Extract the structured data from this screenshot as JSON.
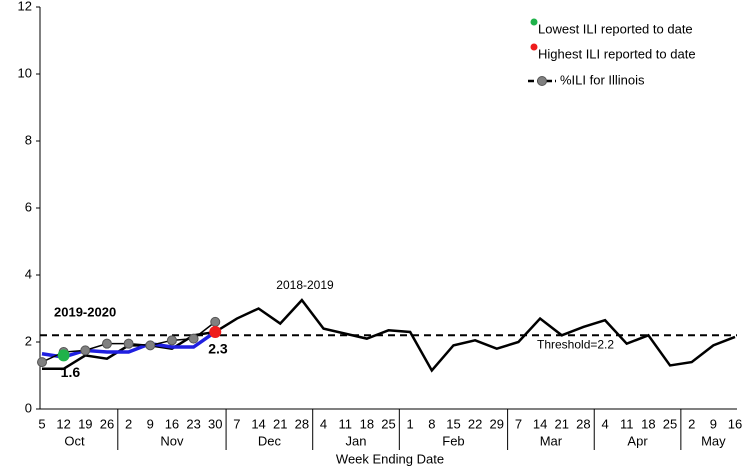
{
  "chart_data": {
    "type": "line",
    "xlabel": "Week Ending Date",
    "categories": [
      "5",
      "12",
      "19",
      "26",
      "2",
      "9",
      "16",
      "23",
      "30",
      "7",
      "14",
      "21",
      "28",
      "4",
      "11",
      "18",
      "25",
      "1",
      "8",
      "15",
      "22",
      "29",
      "7",
      "14",
      "21",
      "28",
      "4",
      "11",
      "18",
      "25",
      "2",
      "9",
      "16"
    ],
    "groups": [
      {
        "label": "Oct",
        "size": 4
      },
      {
        "label": "Nov",
        "size": 5
      },
      {
        "label": "Dec",
        "size": 4
      },
      {
        "label": "Jan",
        "size": 4
      },
      {
        "label": "Feb",
        "size": 5
      },
      {
        "label": "Mar",
        "size": 4
      },
      {
        "label": "Apr",
        "size": 4
      },
      {
        "label": "May",
        "size": 3
      }
    ],
    "ylim": [
      0,
      12
    ],
    "yticks": [
      0,
      2,
      4,
      6,
      8,
      10,
      12
    ],
    "threshold": 2.2,
    "threshold_label": "Threshold=2.2",
    "annotations": [
      "2018-2019",
      "2019-2020"
    ],
    "series": [
      {
        "color": "#000000",
        "style": "line",
        "values": [
          1.2,
          1.2,
          1.6,
          1.5,
          1.9,
          1.9,
          1.8,
          2.2,
          2.3,
          2.7,
          3.0,
          2.55,
          3.25,
          2.4,
          2.25,
          2.1,
          2.35,
          2.3,
          1.15,
          1.9,
          2.05,
          1.8,
          2.0,
          2.7,
          2.2,
          2.45,
          2.65,
          1.95,
          2.2,
          1.3,
          1.4,
          1.9,
          2.15
        ]
      },
      {
        "color": "#1f1fe0",
        "style": "line",
        "values": [
          1.65,
          1.55,
          1.75,
          1.7,
          1.7,
          1.95,
          1.85,
          1.85,
          2.3,
          null,
          null,
          null,
          null,
          null,
          null,
          null,
          null,
          null,
          null,
          null,
          null,
          null,
          null,
          null,
          null,
          null,
          null,
          null,
          null,
          null,
          null,
          null,
          null
        ]
      },
      {
        "name": "%ILI for Illinois",
        "color": "#808080",
        "style": "dots",
        "values": [
          1.4,
          1.7,
          1.75,
          1.95,
          1.95,
          1.9,
          2.05,
          2.1,
          2.6,
          null,
          null,
          null,
          null,
          null,
          null,
          null,
          null,
          null,
          null,
          null,
          null,
          null,
          null,
          null,
          null,
          null,
          null,
          null,
          null,
          null,
          null,
          null,
          null
        ]
      },
      {
        "name": "Lowest ILI reported to date",
        "color": "#1fb24a",
        "style": "point",
        "values": [
          null,
          1.6,
          null,
          null,
          null,
          null,
          null,
          null,
          null,
          null,
          null,
          null,
          null,
          null,
          null,
          null,
          null,
          null,
          null,
          null,
          null,
          null,
          null,
          null,
          null,
          null,
          null,
          null,
          null,
          null,
          null,
          null,
          null
        ]
      },
      {
        "name": "Highest ILI reported to date",
        "color": "#ee1c1c",
        "style": "point",
        "values": [
          null,
          null,
          null,
          null,
          null,
          null,
          null,
          null,
          2.3,
          null,
          null,
          null,
          null,
          null,
          null,
          null,
          null,
          null,
          null,
          null,
          null,
          null,
          null,
          null,
          null,
          null,
          null,
          null,
          null,
          null,
          null,
          null,
          null
        ]
      }
    ]
  }
}
